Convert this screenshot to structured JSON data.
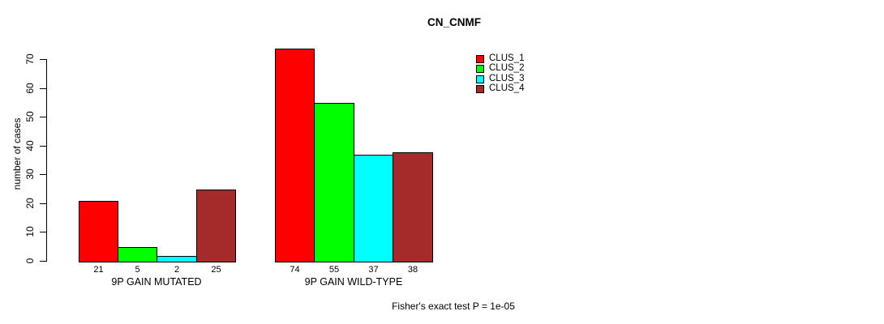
{
  "chart_data": {
    "type": "bar",
    "title": "CN_CNMF",
    "xlabel": "",
    "ylabel": "number of cases",
    "ylim": [
      0,
      70
    ],
    "yticks": [
      0,
      10,
      20,
      30,
      40,
      50,
      60,
      70
    ],
    "categories": [
      "9P GAIN MUTATED",
      "9P GAIN WILD-TYPE"
    ],
    "series": [
      {
        "name": "CLUS_1",
        "color": "#FF0000",
        "values": [
          21,
          74
        ]
      },
      {
        "name": "CLUS_2",
        "color": "#00FF00",
        "values": [
          5,
          55
        ]
      },
      {
        "name": "CLUS_3",
        "color": "#00FFFF",
        "values": [
          2,
          37
        ]
      },
      {
        "name": "CLUS_4",
        "color": "#A52A2A",
        "values": [
          25,
          38
        ]
      }
    ],
    "show_bar_values": true,
    "grid": false,
    "legend": {
      "position": "top-right"
    },
    "footnote": "Fisher's exact test P = 1e-05"
  }
}
